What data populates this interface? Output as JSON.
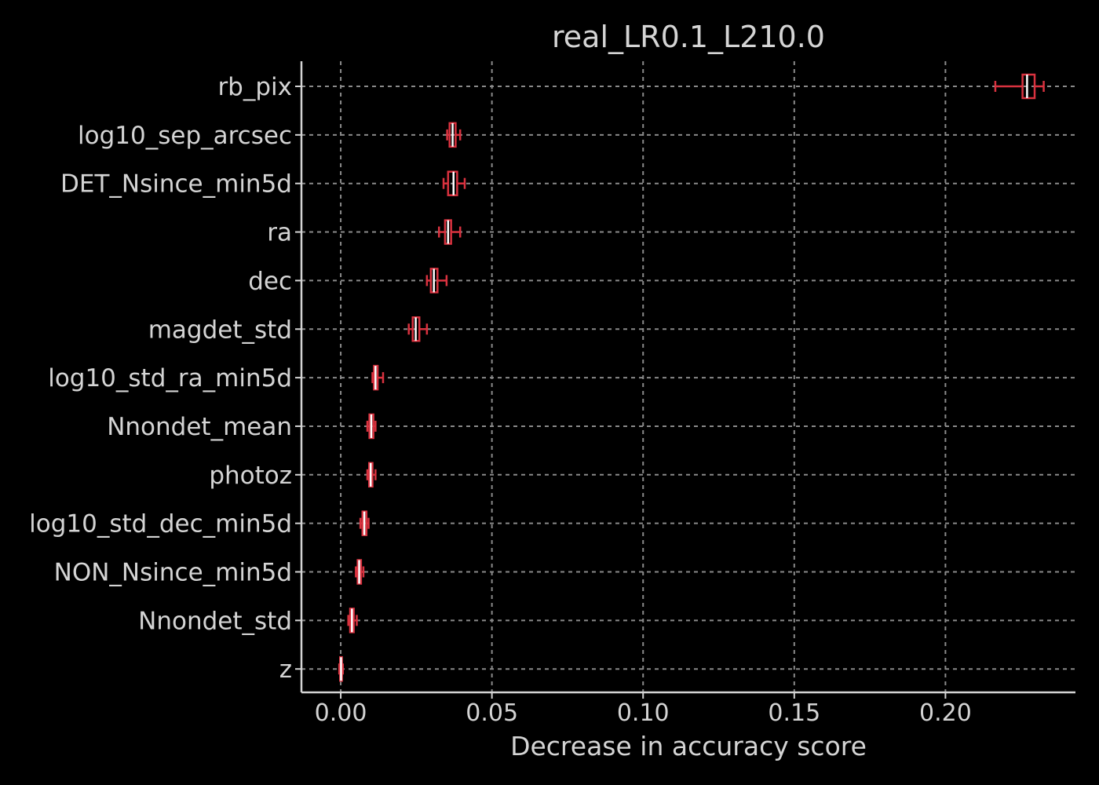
{
  "chart_data": {
    "type": "boxplot",
    "orientation": "horizontal",
    "title": "real_LR0.1_L210.0",
    "xlabel": "Decrease in accuracy score",
    "ylabel": "",
    "xlim": [
      -0.013,
      0.243
    ],
    "xticks": [
      0.0,
      0.05,
      0.1,
      0.15,
      0.2
    ],
    "xtick_labels": [
      "0.00",
      "0.05",
      "0.10",
      "0.15",
      "0.20"
    ],
    "grid": true,
    "colors": {
      "box": "#d9323f",
      "median": "#ffffff",
      "background": "#000000",
      "text": "#d4d4d4",
      "grid": "#8a8a8a"
    },
    "features": [
      {
        "name": "rb_pix",
        "whislo": 0.2165,
        "q1": 0.2255,
        "med": 0.227,
        "q3": 0.2295,
        "whishi": 0.2325
      },
      {
        "name": "log10_sep_arcsec",
        "whislo": 0.0352,
        "q1": 0.036,
        "med": 0.037,
        "q3": 0.038,
        "whishi": 0.0395
      },
      {
        "name": "DET_Nsince_min5d",
        "whislo": 0.034,
        "q1": 0.0355,
        "med": 0.0373,
        "q3": 0.0385,
        "whishi": 0.041
      },
      {
        "name": "ra",
        "whislo": 0.0325,
        "q1": 0.0345,
        "med": 0.0355,
        "q3": 0.0365,
        "whishi": 0.0395
      },
      {
        "name": "dec",
        "whislo": 0.0285,
        "q1": 0.0298,
        "med": 0.0308,
        "q3": 0.032,
        "whishi": 0.035
      },
      {
        "name": "magdet_std",
        "whislo": 0.0225,
        "q1": 0.0238,
        "med": 0.0248,
        "q3": 0.026,
        "whishi": 0.0285
      },
      {
        "name": "log10_std_ra_min5d",
        "whislo": 0.0105,
        "q1": 0.011,
        "med": 0.0115,
        "q3": 0.0122,
        "whishi": 0.014
      },
      {
        "name": "Nnondet_mean",
        "whislo": 0.0088,
        "q1": 0.0095,
        "med": 0.0101,
        "q3": 0.0108,
        "whishi": 0.0115
      },
      {
        "name": "photoz",
        "whislo": 0.0088,
        "q1": 0.0094,
        "med": 0.0099,
        "q3": 0.0105,
        "whishi": 0.0115
      },
      {
        "name": "log10_std_dec_min5d",
        "whislo": 0.0065,
        "q1": 0.0072,
        "med": 0.0078,
        "q3": 0.0085,
        "whishi": 0.0092
      },
      {
        "name": "NON_Nsince_min5d",
        "whislo": 0.005,
        "q1": 0.0056,
        "med": 0.0061,
        "q3": 0.0067,
        "whishi": 0.0075
      },
      {
        "name": "Nnondet_std",
        "whislo": 0.0025,
        "q1": 0.0031,
        "med": 0.0037,
        "q3": 0.0043,
        "whishi": 0.0053
      },
      {
        "name": "z",
        "whislo": -0.0005,
        "q1": -0.0002,
        "med": 0.0001,
        "q3": 0.0004,
        "whishi": 0.0007
      }
    ]
  }
}
